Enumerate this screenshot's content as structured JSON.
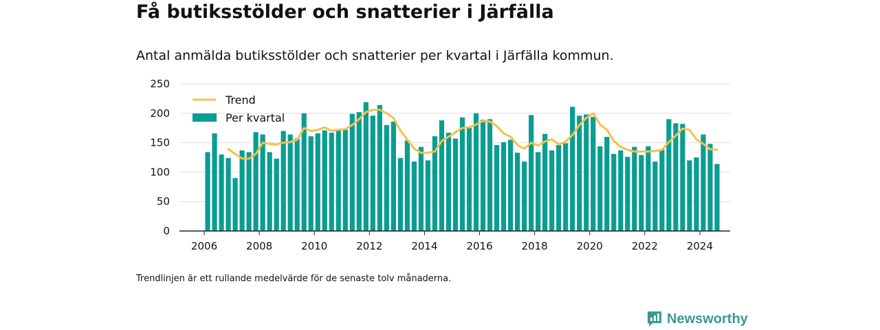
{
  "header": {
    "title": "Få butiksstölder och snatterier i Järfälla",
    "subtitle": "Antal anmälda butiksstölder och snatterier per kvartal i Järfälla kommun."
  },
  "footer": {
    "note": "Trendlinjen är ett rullande medelvärde för de senaste tolv månaderna.",
    "brand": "Newsworthy",
    "brand_icon": "newsworthy-logo-icon"
  },
  "colors": {
    "bar": "#0a9d92",
    "trend": "#f7c04a",
    "axis": "#222222",
    "grid": "#dddddd",
    "brand": "#3a9b8f"
  },
  "chart_data": {
    "type": "bar",
    "x_unit": "quarter",
    "start_period": "2006 Q1",
    "xlim": [
      2005.1,
      2025.1
    ],
    "ylim": [
      0,
      250
    ],
    "x_ticks": [
      "2006",
      "2008",
      "2010",
      "2012",
      "2014",
      "2016",
      "2018",
      "2020",
      "2022",
      "2024"
    ],
    "y_ticks": [
      0,
      50,
      100,
      150,
      200,
      250
    ],
    "grid": true,
    "legend_position": "top-left",
    "series": [
      {
        "name": "Per kvartal",
        "type": "bar",
        "values": [
          134,
          166,
          130,
          124,
          90,
          137,
          134,
          168,
          164,
          134,
          123,
          170,
          164,
          157,
          200,
          161,
          166,
          171,
          167,
          173,
          172,
          199,
          202,
          219,
          196,
          214,
          180,
          186,
          124,
          154,
          118,
          143,
          120,
          161,
          188,
          167,
          157,
          193,
          175,
          200,
          189,
          190,
          146,
          151,
          155,
          133,
          118,
          197,
          134,
          165,
          137,
          146,
          149,
          211,
          196,
          198,
          194,
          144,
          160,
          131,
          137,
          126,
          143,
          129,
          144,
          118,
          138,
          190,
          183,
          182,
          120,
          125,
          164,
          148,
          114
        ]
      },
      {
        "name": "Trend",
        "type": "line",
        "values": [
          null,
          null,
          null,
          139,
          131,
          123,
          123,
          131,
          150,
          148,
          147,
          150,
          151,
          155,
          175,
          170,
          172,
          176,
          170,
          172,
          173,
          180,
          190,
          202,
          206,
          206,
          200,
          192,
          171,
          155,
          140,
          133,
          133,
          135,
          153,
          160,
          168,
          175,
          176,
          181,
          187,
          186,
          178,
          166,
          160,
          146,
          140,
          150,
          145,
          152,
          156,
          147,
          152,
          163,
          180,
          192,
          200,
          181,
          172,
          153,
          143,
          138,
          135,
          135,
          135,
          136,
          138,
          151,
          162,
          174,
          172,
          156,
          148,
          139,
          138
        ]
      }
    ]
  }
}
